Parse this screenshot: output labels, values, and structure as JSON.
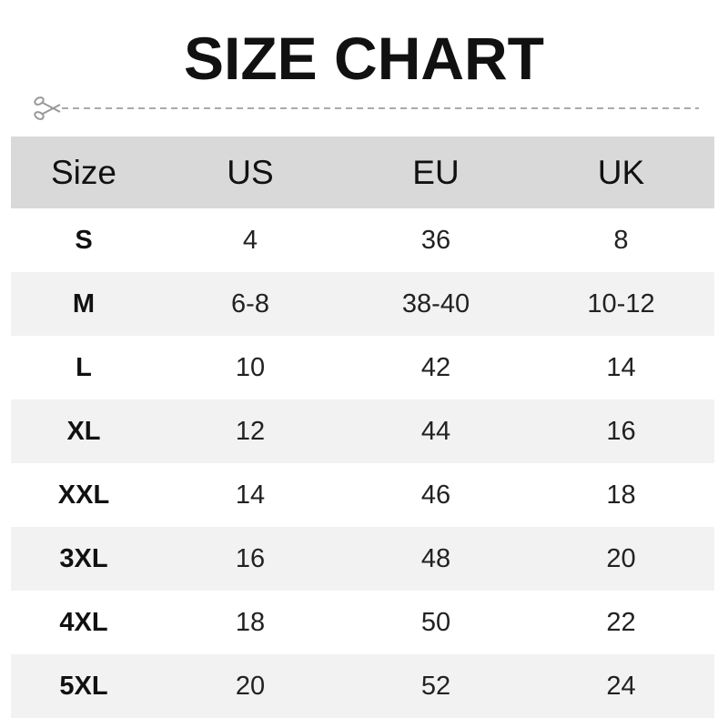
{
  "title": "SIZE CHART",
  "icons": {
    "cut_line": "scissors-icon"
  },
  "colors": {
    "header_bg": "#d9d9d9",
    "alt_row_bg": "#f2f2f2",
    "text": "#111111"
  },
  "table": {
    "headers": [
      "Size",
      "US",
      "EU",
      "UK"
    ],
    "rows": [
      [
        "S",
        "4",
        "36",
        "8"
      ],
      [
        "M",
        "6-8",
        "38-40",
        "10-12"
      ],
      [
        "L",
        "10",
        "42",
        "14"
      ],
      [
        "XL",
        "12",
        "44",
        "16"
      ],
      [
        "XXL",
        "14",
        "46",
        "18"
      ],
      [
        "3XL",
        "16",
        "48",
        "20"
      ],
      [
        "4XL",
        "18",
        "50",
        "22"
      ],
      [
        "5XL",
        "20",
        "52",
        "24"
      ]
    ]
  }
}
